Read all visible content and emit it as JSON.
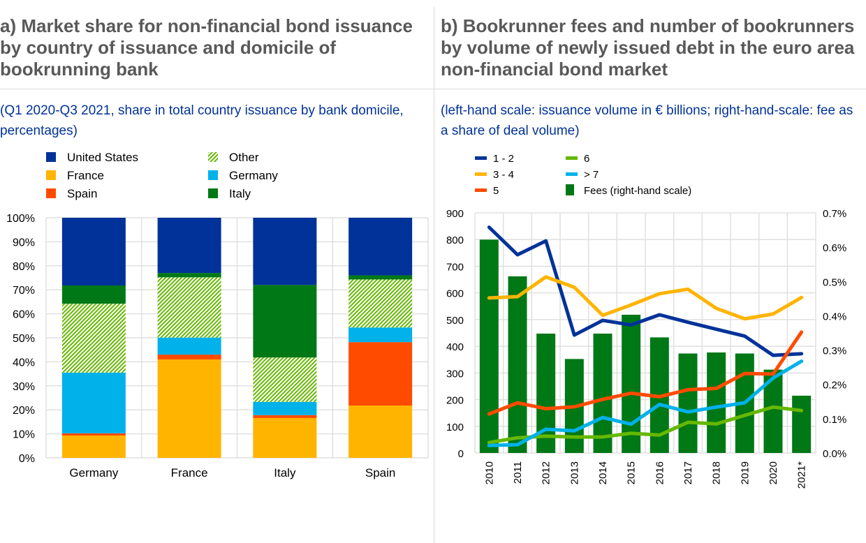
{
  "panels": {
    "a": {
      "title": "a) Market share for non-financial bond issuance by country of issuance and domicile of bookrunning bank",
      "subtitle": "(Q1 2020-Q3 2021, share in total country issuance by bank domicile, percentages)"
    },
    "b": {
      "title": "b) Bookrunner fees and number of bookrunners by volume of newly issued debt in the euro area non-financial bond market",
      "subtitle": "(left-hand scale: issuance volume in € billions; right-hand-scale: fee as a share of deal volume)"
    }
  },
  "chart_data": [
    {
      "type": "bar",
      "stacked": true,
      "percent": true,
      "title": "a) Market share for non-financial bond issuance by country of issuance and domicile of bookrunning bank",
      "categories": [
        "Germany",
        "France",
        "Italy",
        "Spain"
      ],
      "ylim": [
        0,
        100
      ],
      "yticks": [
        "0%",
        "10%",
        "20%",
        "30%",
        "40%",
        "50%",
        "60%",
        "70%",
        "80%",
        "90%",
        "100%"
      ],
      "grid": true,
      "legend_position": "top",
      "series": [
        {
          "name": "France",
          "color": "#ffb400",
          "pattern": false,
          "values": [
            9.3,
            41.0,
            16.6,
            21.8
          ]
        },
        {
          "name": "Spain",
          "color": "#ff4b00",
          "pattern": false,
          "values": [
            0.9,
            2.0,
            1.2,
            26.4
          ]
        },
        {
          "name": "Germany",
          "color": "#00b1ea",
          "pattern": false,
          "values": [
            25.3,
            7.1,
            5.5,
            6.1
          ]
        },
        {
          "name": "Other",
          "color": "#65b800",
          "pattern": true,
          "values": [
            28.7,
            25.1,
            18.5,
            20.0
          ]
        },
        {
          "name": "Italy",
          "color": "#007816",
          "pattern": false,
          "values": [
            7.6,
            1.8,
            30.2,
            1.7
          ]
        },
        {
          "name": "United States",
          "color": "#003299",
          "pattern": false,
          "values": [
            28.2,
            23.0,
            28.0,
            24.0
          ]
        }
      ],
      "legend_order": [
        "United States",
        "France",
        "Spain",
        "Other",
        "Germany",
        "Italy"
      ]
    },
    {
      "type": "line",
      "combo": "bar+line",
      "title": "b) Bookrunner fees and number of bookrunners by volume of newly issued debt in the euro area non-financial bond market",
      "categories": [
        "2010",
        "2011",
        "2012",
        "2013",
        "2014",
        "2015",
        "2016",
        "2017",
        "2018",
        "2019",
        "2020",
        "2021*"
      ],
      "ylabel": "issuance volume in € billions",
      "y2label": "fee as a share of deal volume",
      "ylim": [
        0,
        900
      ],
      "yticks": [
        "0",
        "100",
        "200",
        "300",
        "400",
        "500",
        "600",
        "700",
        "800",
        "900"
      ],
      "y2lim": [
        0,
        0.7
      ],
      "y2ticks": [
        "0.0%",
        "0.1%",
        "0.2%",
        "0.3%",
        "0.4%",
        "0.5%",
        "0.6%",
        "0.7%"
      ],
      "grid": true,
      "legend_position": "top",
      "bars": {
        "name": "Fees (right-hand scale)",
        "color": "#007816",
        "axis": "right",
        "values": [
          0.622,
          0.515,
          0.348,
          0.274,
          0.348,
          0.403,
          0.337,
          0.29,
          0.293,
          0.29,
          0.243,
          0.167
        ]
      },
      "series": [
        {
          "name": "1 - 2",
          "color": "#003299",
          "values": [
            846,
            743,
            795,
            442,
            497,
            480,
            518,
            490,
            464,
            438,
            366,
            372
          ]
        },
        {
          "name": "3 - 4",
          "color": "#ffb400",
          "values": [
            581,
            586,
            660,
            621,
            516,
            555,
            597,
            614,
            542,
            503,
            521,
            583
          ]
        },
        {
          "name": "5",
          "color": "#ff4b00",
          "values": [
            146,
            188,
            166,
            173,
            201,
            224,
            211,
            237,
            242,
            298,
            296,
            453
          ]
        },
        {
          "name": "6",
          "color": "#65b800",
          "values": [
            39,
            57,
            63,
            60,
            60,
            74,
            67,
            115,
            109,
            141,
            172,
            159
          ]
        },
        {
          "name": "> 7",
          "color": "#00b1ea",
          "values": [
            28,
            31,
            89,
            83,
            133,
            108,
            182,
            154,
            172,
            188,
            281,
            344
          ]
        }
      ],
      "legend_order": [
        "1 - 2",
        "3 - 4",
        "5",
        "6",
        "> 7",
        "Fees (right-hand scale)"
      ]
    }
  ]
}
